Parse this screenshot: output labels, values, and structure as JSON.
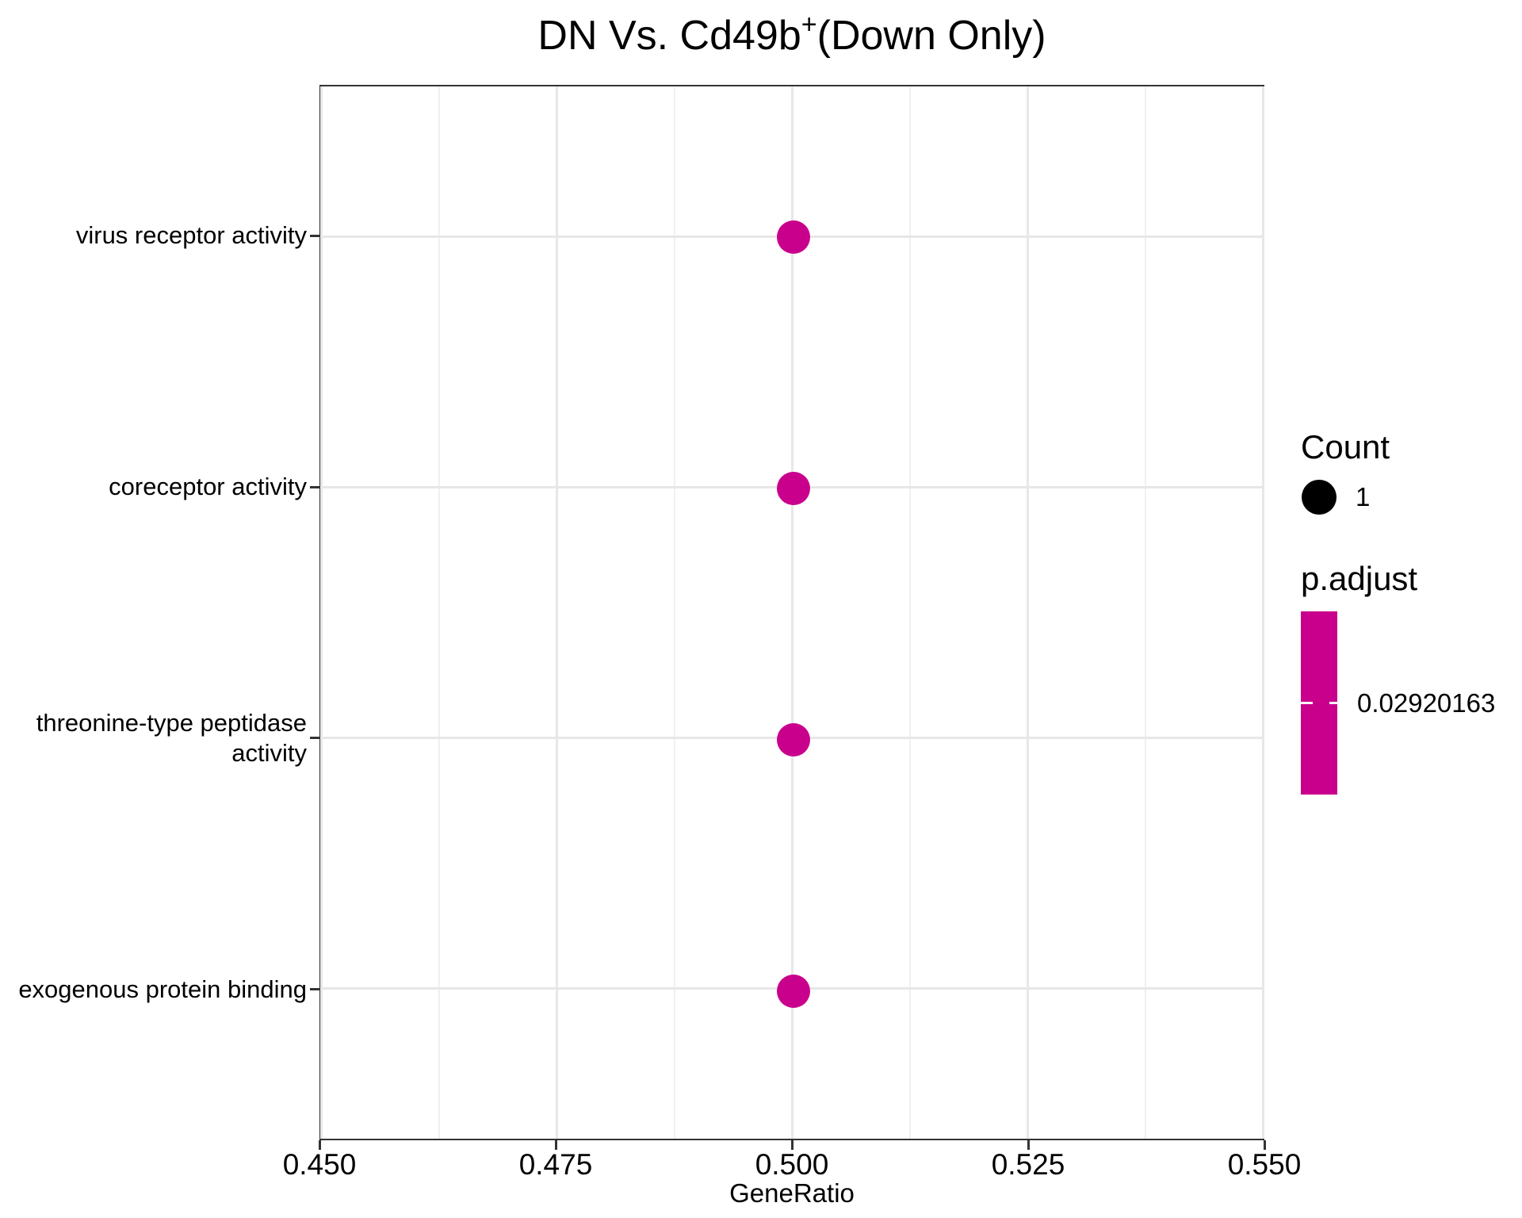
{
  "chart_data": {
    "type": "scatter",
    "title": "DN Vs. Cd49b+(Down Only)",
    "title_parts": {
      "base": "DN Vs. Cd49b",
      "superscript": "+",
      "suffix": "(Down Only)"
    },
    "xlabel": "GeneRatio",
    "ylabel": "",
    "xlim": [
      0.45,
      0.55
    ],
    "x_ticks": [
      {
        "value": 0.45,
        "label": "0.450"
      },
      {
        "value": 0.475,
        "label": "0.475"
      },
      {
        "value": 0.5,
        "label": "0.500"
      },
      {
        "value": 0.525,
        "label": "0.525"
      },
      {
        "value": 0.55,
        "label": "0.550"
      }
    ],
    "grid": {
      "major": true,
      "minor": true,
      "minor_step": 0.0125
    },
    "categories": [
      {
        "name": "virus receptor activity",
        "lines": [
          "virus receptor activity"
        ]
      },
      {
        "name": "coreceptor activity",
        "lines": [
          "coreceptor activity"
        ]
      },
      {
        "name": "threonine-type peptidase activity",
        "lines": [
          "threonine-type peptidase",
          "activity"
        ]
      },
      {
        "name": "exogenous protein binding",
        "lines": [
          "exogenous protein binding"
        ]
      }
    ],
    "points": [
      {
        "category": "virus receptor activity",
        "gene_ratio": 0.5,
        "count": 1,
        "p_adjust": 0.02920163
      },
      {
        "category": "coreceptor activity",
        "gene_ratio": 0.5,
        "count": 1,
        "p_adjust": 0.02920163
      },
      {
        "category": "threonine-type peptidase activity",
        "gene_ratio": 0.5,
        "count": 1,
        "p_adjust": 0.02920163
      },
      {
        "category": "exogenous protein binding",
        "gene_ratio": 0.5,
        "count": 1,
        "p_adjust": 0.02920163
      }
    ],
    "legend": {
      "count": {
        "title": "Count",
        "items": [
          {
            "label": "1",
            "size": 1
          }
        ]
      },
      "p_adjust": {
        "title": "p.adjust",
        "tick_labels": [
          "0.02920163"
        ]
      }
    },
    "colors": {
      "point": "#C9008C",
      "colorbar": "#C9008C",
      "legend_key": "#000000",
      "grid_major": "#E7E7E7",
      "grid_minor": "#F0F0F0",
      "panel_border": "#333333",
      "text": "#000000"
    }
  }
}
